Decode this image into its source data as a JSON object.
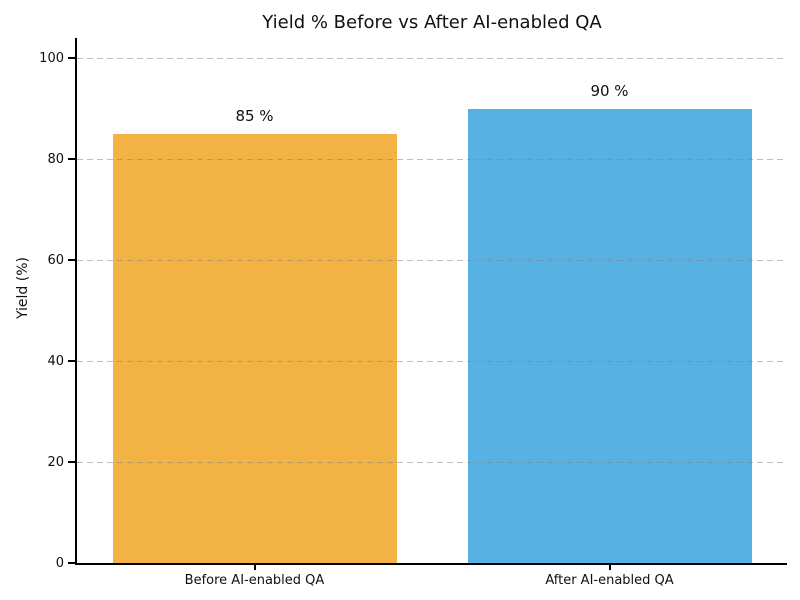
{
  "chart_data": {
    "type": "bar",
    "title": "Yield % Before vs After AI-enabled QA",
    "xlabel": "",
    "ylabel": "Yield (%)",
    "categories": [
      "Before AI-enabled QA",
      "After AI-enabled QA"
    ],
    "values": [
      85,
      90
    ],
    "value_labels": [
      "85 %",
      "90 %"
    ],
    "bar_colors": [
      "#F2B244",
      "#57B1E3"
    ],
    "ylim": [
      0,
      104
    ],
    "yticks": [
      0,
      20,
      40,
      60,
      80,
      100
    ],
    "grid": {
      "axis": "y",
      "style": "dashed",
      "color": "rgba(128,128,128,0.5)",
      "above_bars": true
    },
    "legend": "none",
    "axis_color": "#000000",
    "text_color": "#111111",
    "background": "#ffffff"
  }
}
